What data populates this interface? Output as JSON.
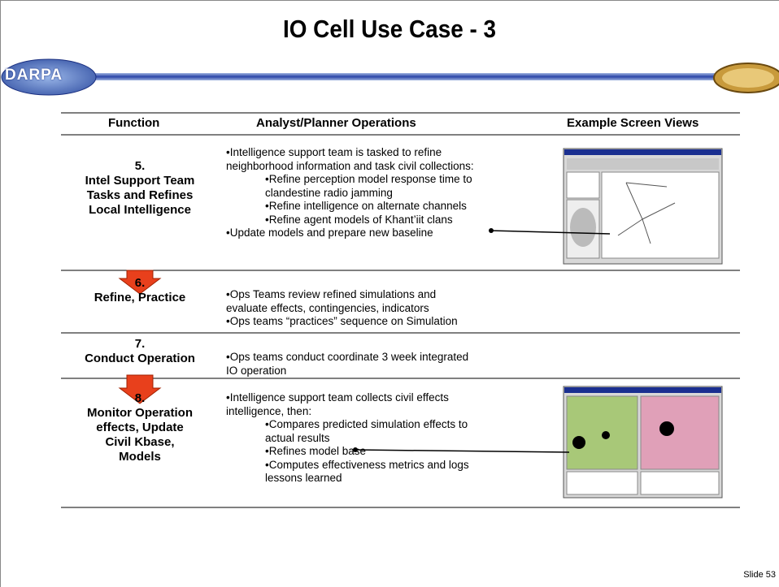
{
  "header": {
    "title": "IO Cell Use Case - 3",
    "logo_left": "DARPA"
  },
  "table": {
    "columns": [
      "Function",
      "Analyst/Planner Operations",
      "Example Screen Views"
    ],
    "rows": [
      {
        "number": "5.",
        "function": [
          "Intel Support Team",
          "Tasks and Refines",
          "Local Intelligence"
        ],
        "bullets": [
          {
            "level": 1,
            "lines": [
              "•Intelligence support team is tasked to refine",
              "neighborhood information and task civil collections:"
            ]
          },
          {
            "level": 2,
            "lines": [
              "•Refine perception model response time to",
              "clandestine radio jamming"
            ]
          },
          {
            "level": 2,
            "lines": [
              "•Refine intelligence on alternate channels"
            ]
          },
          {
            "level": 2,
            "lines": [
              "•Refine agent models of Khant’iit clans"
            ]
          },
          {
            "level": 1,
            "lines": [
              "•Update models and prepare new baseline"
            ]
          }
        ]
      },
      {
        "number": "6.",
        "function": [
          "Refine, Practice"
        ],
        "bullets": [
          {
            "level": 1,
            "lines": [
              "•Ops Teams review refined simulations and",
              "evaluate effects, contingencies, indicators"
            ]
          },
          {
            "level": 1,
            "lines": [
              "•Ops teams “practices” sequence on Simulation"
            ]
          }
        ]
      },
      {
        "number": "7.",
        "function": [
          "Conduct Operation"
        ],
        "bullets": [
          {
            "level": 1,
            "lines": [
              "•Ops teams conduct coordinate 3 week integrated",
              "IO operation"
            ]
          }
        ]
      },
      {
        "number": "8.",
        "function": [
          "Monitor Operation",
          "effects, Update",
          "Civil Kbase,",
          "Models"
        ],
        "bullets": [
          {
            "level": 1,
            "lines": [
              "•Intelligence support team collects civil effects",
              "intelligence, then:"
            ]
          },
          {
            "level": 2,
            "lines": [
              "•Compares predicted simulation effects to",
              "actual results"
            ]
          },
          {
            "level": 2,
            "lines": [
              "•Refines model base"
            ]
          },
          {
            "level": 2,
            "lines": [
              "•Computes effectiveness metrics and logs",
              "lessons learned"
            ]
          }
        ]
      }
    ]
  },
  "footer": {
    "slide": "Slide 53"
  }
}
